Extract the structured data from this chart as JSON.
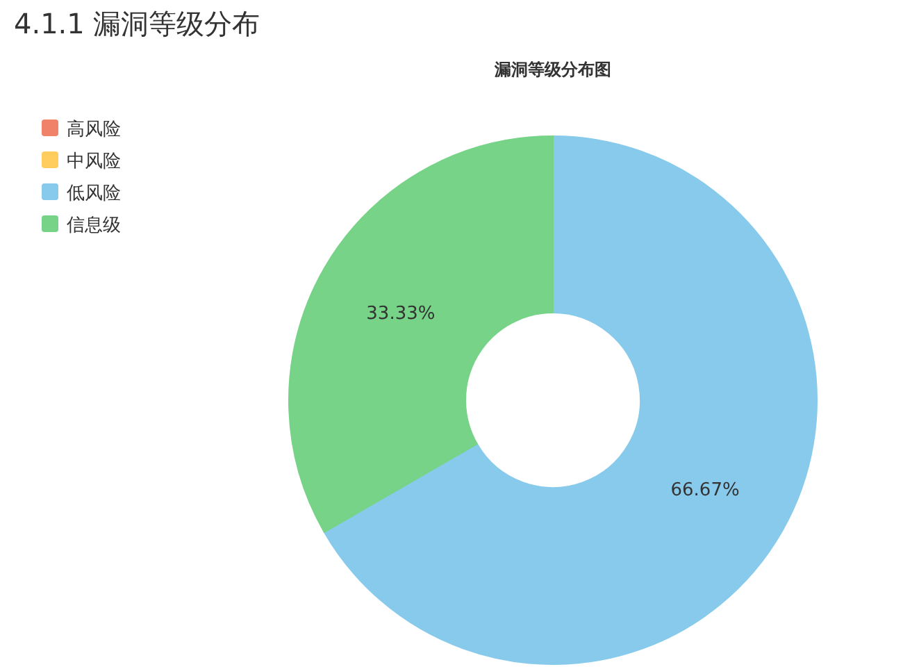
{
  "chart_data": {
    "type": "donut",
    "title": "漏洞等级分布图",
    "annotations": [
      "4.1.1 漏洞等级分布"
    ],
    "categories": [
      "高风险",
      "中风险",
      "低风险",
      "信息级"
    ],
    "values": [
      0,
      0,
      66.67,
      33.33
    ],
    "colors": [
      "#f0826a",
      "#ffcd5e",
      "#88caeb",
      "#76d387"
    ],
    "value_labels": [
      null,
      null,
      "66.67%",
      "33.33%"
    ],
    "legend": "top left"
  }
}
